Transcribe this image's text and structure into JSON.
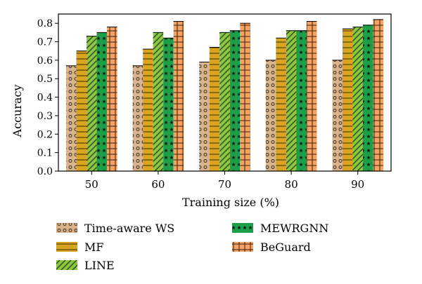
{
  "chart_data": {
    "type": "bar",
    "title": "",
    "xlabel": "Training size (%)",
    "ylabel": "Accuracy",
    "categories": [
      "50",
      "60",
      "70",
      "80",
      "90"
    ],
    "ylim": [
      0,
      0.85
    ],
    "yticks": [
      "0.0",
      "0.1",
      "0.2",
      "0.3",
      "0.4",
      "0.5",
      "0.6",
      "0.7",
      "0.8"
    ],
    "grid": false,
    "legend_placement": "bottom",
    "series": [
      {
        "name": "Time-aware WS",
        "values": [
          0.57,
          0.57,
          0.59,
          0.6,
          0.6
        ],
        "color": "#d9b48c",
        "pattern": "dots"
      },
      {
        "name": "MF",
        "values": [
          0.65,
          0.66,
          0.67,
          0.72,
          0.77
        ],
        "color": "#d9a520",
        "pattern": "hlines"
      },
      {
        "name": "LINE",
        "values": [
          0.73,
          0.75,
          0.75,
          0.76,
          0.78
        ],
        "color": "#8cc63e",
        "pattern": "diag"
      },
      {
        "name": "MEWRGNN",
        "values": [
          0.75,
          0.72,
          0.76,
          0.76,
          0.79
        ],
        "color": "#1f9e4a",
        "pattern": "stars"
      },
      {
        "name": "BeGuard",
        "values": [
          0.78,
          0.81,
          0.8,
          0.81,
          0.82
        ],
        "color": "#f5a363",
        "pattern": "grid"
      }
    ]
  }
}
